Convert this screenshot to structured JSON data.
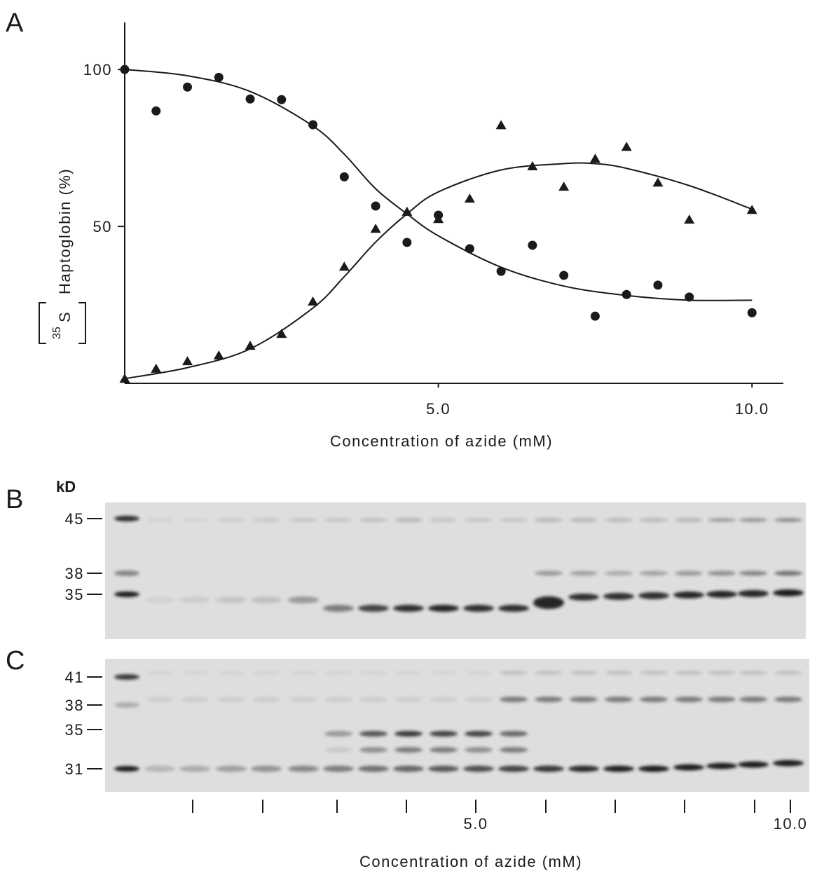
{
  "panel_labels": [
    "A",
    "B",
    "C"
  ],
  "chart_data": {
    "type": "scatter",
    "ylabel_isotope": "35",
    "ylabel_element": "S",
    "ylabel_rest": "Haptoglobin (%)",
    "xlabel": "Concentration of azide (mM)",
    "xlim": [
      0,
      10.5
    ],
    "ylim": [
      0,
      115
    ],
    "xticks": [
      {
        "value": 5,
        "label": "5.0"
      },
      {
        "value": 10,
        "label": "10.0"
      }
    ],
    "yticks": [
      50,
      100
    ],
    "x": [
      0,
      0.5,
      1,
      1.5,
      2,
      2.5,
      3,
      3.5,
      4,
      4.5,
      5,
      5.5,
      6,
      6.5,
      7,
      7.5,
      8,
      8.5,
      9,
      10
    ],
    "series": [
      {
        "marker": "circle",
        "color": "#1a1a1a",
        "values": [
          100,
          86.8,
          94.4,
          97.5,
          90.6,
          90.4,
          82.4,
          65.8,
          56.5,
          44.9,
          53.6,
          42.9,
          35.7,
          44,
          34.4,
          21.4,
          28.3,
          31.3,
          27.5,
          22.5
        ]
      },
      {
        "marker": "triangle",
        "color": "#1a1a1a",
        "values": [
          1.3,
          4.5,
          6.9,
          8.7,
          11.8,
          15.6,
          25.9,
          37,
          49.1,
          54.5,
          52.2,
          58.7,
          82.1,
          69,
          62.5,
          71.4,
          75.2,
          63.8,
          52,
          55.1
        ]
      }
    ],
    "fits": [
      {
        "x": [
          0,
          1,
          2,
          3,
          3.5,
          4,
          4.5,
          5,
          6,
          7,
          8,
          9,
          10
        ],
        "values": [
          100,
          98,
          93,
          82,
          73,
          62,
          54,
          47,
          37,
          31,
          28,
          26.5,
          26.5
        ]
      },
      {
        "x": [
          0,
          1,
          2,
          3,
          3.5,
          4,
          4.5,
          5,
          6,
          7,
          7.5,
          8,
          9,
          10
        ],
        "values": [
          1.5,
          5,
          11,
          24,
          34,
          45,
          54,
          61,
          68,
          70,
          70,
          68.5,
          63,
          55.5
        ]
      }
    ]
  },
  "gel_b": {
    "unit": "kD",
    "markers": [
      "45",
      "38",
      "35"
    ]
  },
  "gel_c": {
    "markers": [
      "41",
      "38",
      "35",
      "31"
    ]
  },
  "gel_axis": {
    "tick_labels": [
      "5.0",
      "10.0"
    ],
    "xlabel": "Concentration of azide (mM)"
  }
}
